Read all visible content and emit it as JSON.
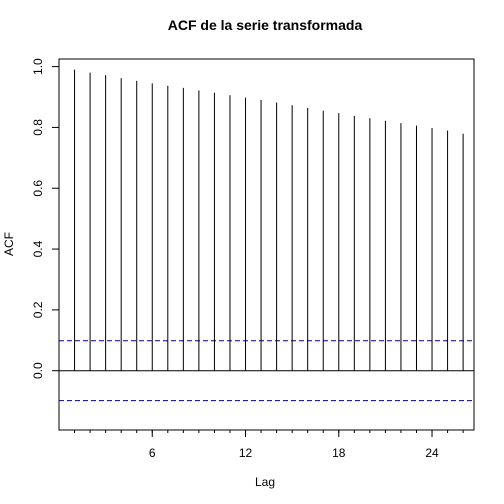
{
  "chart_data": {
    "type": "bar",
    "title": "ACF de la serie transformada",
    "xlabel": "Lag",
    "ylabel": "ACF",
    "x": [
      1,
      2,
      3,
      4,
      5,
      6,
      7,
      8,
      9,
      10,
      11,
      12,
      13,
      14,
      15,
      16,
      17,
      18,
      19,
      20,
      21,
      22,
      23,
      24,
      25,
      26
    ],
    "values": [
      0.99,
      0.98,
      0.972,
      0.962,
      0.953,
      0.945,
      0.937,
      0.93,
      0.922,
      0.914,
      0.906,
      0.898,
      0.89,
      0.882,
      0.873,
      0.864,
      0.855,
      0.847,
      0.838,
      0.83,
      0.822,
      0.814,
      0.806,
      0.798,
      0.79,
      0.779
    ],
    "xlim": [
      0,
      26.7
    ],
    "ylim": [
      -0.195,
      1.025
    ],
    "x_ticks": [
      6,
      12,
      18,
      24
    ],
    "y_ticks": [
      0.0,
      0.2,
      0.4,
      0.6,
      0.8,
      1.0
    ],
    "x_tick_labels": [
      "6",
      "12",
      "18",
      "24"
    ],
    "y_tick_labels": [
      "0.0",
      "0.2",
      "0.4",
      "0.6",
      "0.8",
      "1.0"
    ],
    "confidence_bounds": [
      0.0985,
      -0.0985
    ],
    "zero_line": 0,
    "grid": false,
    "colors": {
      "bars": "#000000",
      "confidence": "#00008b",
      "axes": "#000000"
    }
  }
}
